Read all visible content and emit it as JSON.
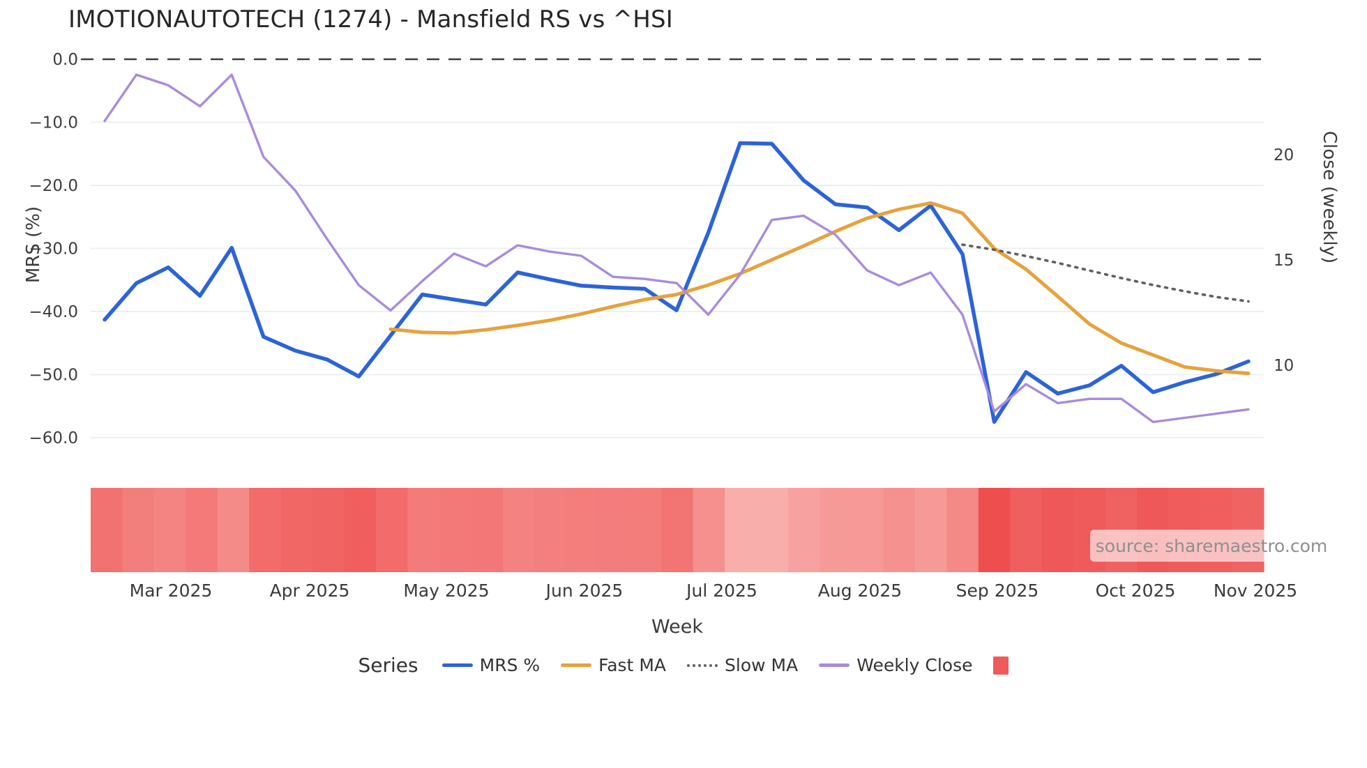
{
  "title": "IMOTIONAUTOTECH (1274) - Mansfield RS vs ^HSI",
  "watermark": "source: sharemaestro.com",
  "axes": {
    "left": {
      "title": "MRS (%)",
      "tick_labels": [
        "0.0",
        "−10.0",
        "−20.0",
        "−30.0",
        "−40.0",
        "−50.0",
        "−60.0"
      ],
      "tick_values": [
        0,
        -10,
        -20,
        -30,
        -40,
        -50,
        -60
      ]
    },
    "right": {
      "title": "Close (weekly)",
      "tick_labels": [
        "20",
        "15",
        "10"
      ],
      "tick_values": [
        20,
        15,
        10
      ]
    },
    "x": {
      "title": "Week",
      "tick_labels": [
        "Mar 2025",
        "Apr 2025",
        "May 2025",
        "Jun 2025",
        "Jul 2025",
        "Aug 2025",
        "Sep 2025",
        "Oct 2025",
        "Nov 2025"
      ]
    }
  },
  "legend": {
    "label": "Series",
    "items": [
      {
        "label": "MRS %",
        "swatch": "line",
        "color": "#2c63d8"
      },
      {
        "label": "Fast MA",
        "swatch": "line",
        "color": "#e6a23c"
      },
      {
        "label": "Slow MA",
        "swatch": "dotted",
        "color": "#5f5f5f"
      },
      {
        "label": "Weekly Close",
        "swatch": "line",
        "color": "#a88bdd"
      },
      {
        "label": "",
        "swatch": "square",
        "color": "#ef5b5b"
      }
    ]
  },
  "colors": {
    "mrs": "#2c63d8",
    "fast_ma": "#e6a23c",
    "slow_ma": "#5f5f5f",
    "weekly_close": "#a88bdd",
    "zero_line": "#3b3b3b",
    "grid": "#edf0f3",
    "heat_low": "#ee4d4d",
    "heat_high": "#f8b0ad"
  },
  "chart_data": {
    "type": "line",
    "title": "IMOTIONAUTOTECH (1274) - Mansfield RS vs ^HSI",
    "xlabel": "Week",
    "ylabel_left": "MRS (%)",
    "ylabel_right": "Close (weekly)",
    "ylim_left": [
      -63,
      3
    ],
    "ylim_right": [
      5.5,
      25.5
    ],
    "grid": true,
    "legend_position": "bottom",
    "zero_reference_line": 0,
    "x": [
      "2025-02-17",
      "2025-02-24",
      "2025-03-03",
      "2025-03-10",
      "2025-03-17",
      "2025-03-24",
      "2025-03-31",
      "2025-04-07",
      "2025-04-14",
      "2025-04-21",
      "2025-04-28",
      "2025-05-05",
      "2025-05-12",
      "2025-05-19",
      "2025-05-26",
      "2025-06-02",
      "2025-06-09",
      "2025-06-16",
      "2025-06-23",
      "2025-06-30",
      "2025-07-07",
      "2025-07-14",
      "2025-07-21",
      "2025-07-28",
      "2025-08-04",
      "2025-08-11",
      "2025-08-18",
      "2025-08-25",
      "2025-09-01",
      "2025-09-08",
      "2025-09-15",
      "2025-09-22",
      "2025-09-29",
      "2025-10-06",
      "2025-10-13",
      "2025-10-20",
      "2025-10-27"
    ],
    "series": [
      {
        "name": "MRS %",
        "axis": "left",
        "style": "solid",
        "values": [
          -41.3,
          -35.5,
          -33.0,
          -37.5,
          -29.9,
          -44.0,
          -46.2,
          -47.6,
          -50.3,
          -43.8,
          -37.3,
          -38.1,
          -38.9,
          -33.8,
          -34.9,
          -35.9,
          -36.2,
          -36.4,
          -39.8,
          -27.5,
          -13.3,
          -13.4,
          -19.2,
          -23.0,
          -23.5,
          -27.1,
          -23.2,
          -30.9,
          -57.5,
          -49.6,
          -53.0,
          -51.7,
          -48.6,
          -52.8,
          -51.2,
          -49.9,
          -47.9
        ]
      },
      {
        "name": "Fast MA",
        "axis": "left",
        "style": "solid",
        "values": [
          null,
          null,
          null,
          null,
          null,
          null,
          null,
          null,
          null,
          -42.8,
          -43.3,
          -43.4,
          -42.9,
          -42.2,
          -41.4,
          -40.4,
          -39.2,
          -38.1,
          -37.3,
          -35.8,
          -34.0,
          -31.8,
          -29.6,
          -27.3,
          -25.2,
          -23.8,
          -22.8,
          -24.4,
          -30.0,
          -33.3,
          -37.6,
          -42.0,
          -45.0,
          -46.9,
          -48.8,
          -49.4,
          -49.8
        ]
      },
      {
        "name": "Slow MA",
        "axis": "left",
        "style": "dotted",
        "values": [
          null,
          null,
          null,
          null,
          null,
          null,
          null,
          null,
          null,
          null,
          null,
          null,
          null,
          null,
          null,
          null,
          null,
          null,
          null,
          null,
          null,
          null,
          null,
          null,
          null,
          null,
          null,
          -29.4,
          -30.2,
          -31.2,
          -32.3,
          -33.5,
          -34.7,
          -35.8,
          -36.8,
          -37.7,
          -38.4
        ]
      },
      {
        "name": "Weekly Close",
        "axis": "right",
        "style": "solid",
        "values": [
          21.6,
          23.8,
          23.3,
          22.3,
          23.8,
          19.9,
          18.3,
          16.0,
          13.8,
          12.6,
          14.0,
          15.3,
          14.7,
          15.7,
          15.4,
          15.2,
          14.2,
          14.1,
          13.9,
          12.4,
          14.3,
          16.9,
          17.1,
          16.2,
          14.5,
          13.8,
          14.4,
          12.4,
          7.8,
          9.1,
          8.2,
          8.4,
          8.4,
          7.3,
          7.5,
          7.7,
          7.9
        ]
      }
    ],
    "heatmap_strip": {
      "description": "weekly cells shaded by MRS % (lighter = higher MRS)",
      "source_series": "MRS %"
    }
  }
}
